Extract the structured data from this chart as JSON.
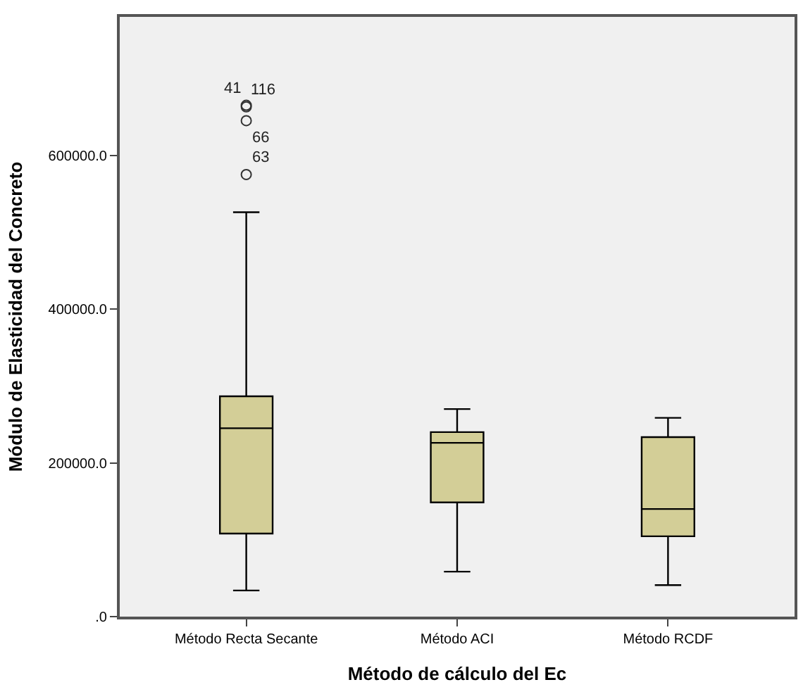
{
  "chart_data": {
    "type": "box",
    "xlabel": "Método de cálculo del Ec",
    "ylabel": "Módulo de Elasticidad del Concreto",
    "categories": [
      "Método Recta Secante",
      "Método ACI",
      "Método RCDF"
    ],
    "color": "#d3ce97",
    "boxes": [
      {
        "low": 34000,
        "q1": 108000,
        "median": 245000,
        "q3": 286500,
        "high": 526000,
        "outliers": [
          665000,
          663000,
          645000,
          575000
        ]
      },
      {
        "low": 58500,
        "q1": 148500,
        "median": 226000,
        "q3": 240000,
        "high": 270000
      },
      {
        "low": 41000,
        "q1": 104500,
        "median": 140000,
        "q3": 233500,
        "high": 258500
      }
    ],
    "ylim": [
      0,
      780000
    ],
    "yticks": [
      {
        "value": 0,
        "label": ".0"
      },
      {
        "value": 200000,
        "label": "200000.0"
      },
      {
        "value": 400000,
        "label": "400000.0"
      },
      {
        "value": 600000,
        "label": "600000.0"
      }
    ],
    "annotations": [
      "41",
      "116",
      "66",
      "63"
    ],
    "marker": "circle",
    "grid": false
  }
}
